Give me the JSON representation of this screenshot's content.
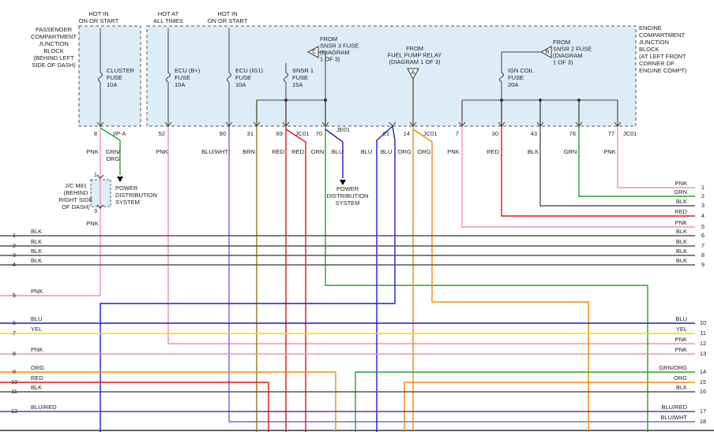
{
  "supply_labels": [
    [
      "HOT IN",
      "ON OR START"
    ],
    [
      "HOT AT",
      "ALL TIMES"
    ],
    [
      "HOT IN",
      "ON OR START"
    ]
  ],
  "blocks": [
    [
      "PASSENGER",
      "COMPARTMENT",
      "JUNCTION",
      "BLOCK",
      "(BEHIND LEFT",
      "SIDE OF DASH)"
    ],
    [
      "ENGINE",
      "COMPARTMENT",
      "JUNCTION",
      "BLOCK",
      "(AT LEFT FRONT",
      "CORNER OF",
      "ENGINE COMPT)"
    ]
  ],
  "fuses": [
    [
      "CLUSTER",
      "FUSE",
      "10A"
    ],
    [
      "ECU (B+)",
      "FUSE",
      "10A"
    ],
    [
      "ECU (IG1)",
      "FUSE",
      "10A"
    ],
    [
      "SNSR 1",
      "FUSE",
      "15A"
    ],
    [
      "IGN COIL",
      "FUSE",
      "20A"
    ]
  ],
  "sources": [
    {
      "connector": "C",
      "lines": [
        "FROM",
        "SNSR 3 FUSE",
        "(DIAGRAM",
        "1 OF 3)"
      ]
    },
    {
      "connector": "A",
      "lines": [
        "FROM",
        "FUEL PUMP RELAY",
        "(DIAGRAM 1 OF 3)"
      ]
    },
    {
      "connector": "B",
      "lines": [
        "FROM",
        "SNSR 2 FUSE",
        "(DIAGRAM",
        "1 OF 3)"
      ]
    }
  ],
  "pins": [
    "8",
    "52",
    "90",
    "31",
    "69",
    "70",
    "81",
    "14",
    "7",
    "30",
    "43",
    "76",
    "77"
  ],
  "connectors": [
    "I/P-A",
    "JC01",
    "JE01",
    "JC01",
    "JC01"
  ],
  "wire_colors": [
    "PNK",
    "PNK",
    "BLU/WHT",
    "BRN",
    "RED",
    "RED",
    "GRN",
    "BLU",
    "BLU",
    "BLU",
    "ORG",
    "ORG",
    "PNK",
    "RED",
    "BLK",
    "GRN",
    "PNK"
  ],
  "pin8_branch": [
    "GRN/",
    "ORG"
  ],
  "junction": {
    "lines": [
      "J/C M81",
      "(BEHIND",
      "RIGHT SIDE",
      "OF DASH)"
    ],
    "pins": [
      "1",
      "3"
    ],
    "wire": "PNK"
  },
  "destinations": [
    [
      "POWER",
      "DISTRIBUTION",
      "SYSTEM"
    ],
    [
      "POWER",
      "DISTRIBUTION",
      "SYSTEM"
    ]
  ],
  "left_pins": [
    {
      "pin": "1",
      "color": "BLK"
    },
    {
      "pin": "2",
      "color": "BLK"
    },
    {
      "pin": "3",
      "color": "BLK"
    },
    {
      "pin": "4",
      "color": "BLK"
    },
    {
      "pin": "5",
      "color": "PNK"
    },
    {
      "pin": "6",
      "color": "BLU"
    },
    {
      "pin": "7",
      "color": "YEL"
    },
    {
      "pin": "8",
      "color": "PNK"
    },
    {
      "pin": "9",
      "color": "ORG"
    },
    {
      "pin": "10",
      "color": "RED"
    },
    {
      "pin": "11",
      "color": "BLK"
    },
    {
      "pin": "12",
      "color": "BLU/RED"
    }
  ],
  "right_pins": [
    {
      "pin": "1",
      "color": "PNK"
    },
    {
      "pin": "2",
      "color": "GRN"
    },
    {
      "pin": "3",
      "color": "BLK"
    },
    {
      "pin": "4",
      "color": "RED"
    },
    {
      "pin": "5",
      "color": "PNK"
    },
    {
      "pin": "6",
      "color": "BLK"
    },
    {
      "pin": "7",
      "color": "BLK"
    },
    {
      "pin": "8",
      "color": "BLK"
    },
    {
      "pin": "9",
      "color": "BLK"
    },
    {
      "pin": "10",
      "color": "BLU"
    },
    {
      "pin": "11",
      "color": "YEL"
    },
    {
      "pin": "12",
      "color": "PNK"
    },
    {
      "pin": "13",
      "color": "PNK"
    },
    {
      "pin": "14",
      "color": "GRN/ORG"
    },
    {
      "pin": "15",
      "color": "ORG"
    },
    {
      "pin": "16",
      "color": "BLK"
    },
    {
      "pin": "17",
      "color": "BLU/RED"
    },
    {
      "pin": "18",
      "color": "BLU/WHT"
    }
  ]
}
